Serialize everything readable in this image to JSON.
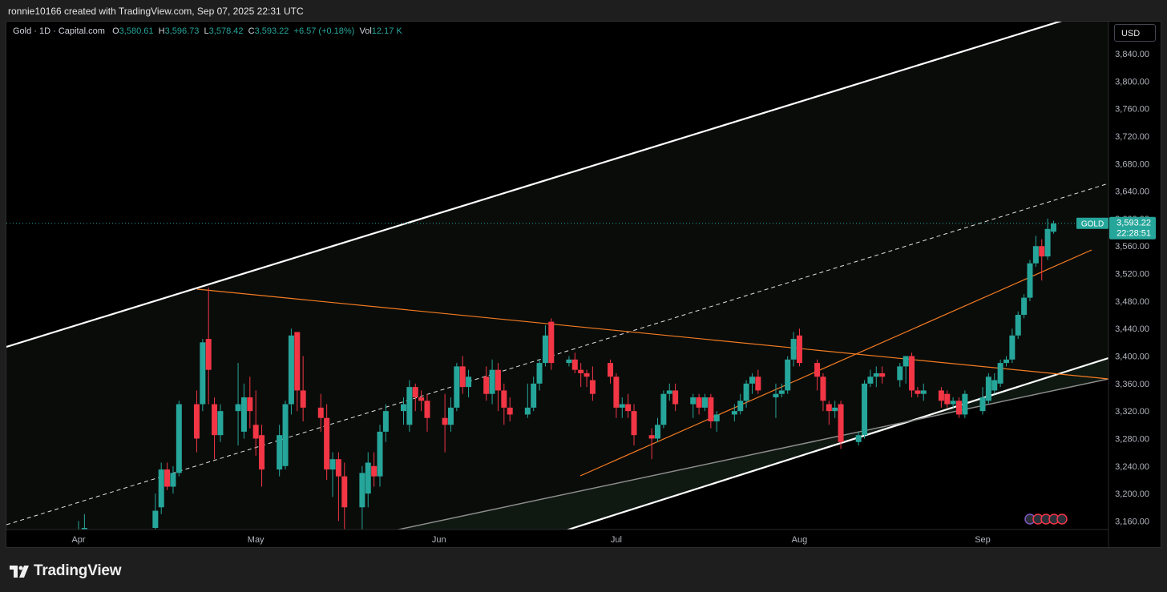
{
  "header": {
    "attribution": "ronnie10166 created with TradingView.com, Sep 07, 2025 22:31 UTC"
  },
  "legend": {
    "symbol": "Gold · 1D · Capital.com",
    "o_label": "O",
    "o_value": "3,580.61",
    "h_label": "H",
    "h_value": "3,596.73",
    "l_label": "L",
    "l_value": "3,578.42",
    "c_label": "C",
    "c_value": "3,593.22",
    "change": "+6.57 (+0.18%)",
    "vol_label": "Vol",
    "vol_value": "12.17 K"
  },
  "currency_button": {
    "label": "USD"
  },
  "price_tag": {
    "symbol": "GOLD",
    "price": "3,593.22",
    "countdown": "22:28:51"
  },
  "footer": {
    "logo_text": "TradingView"
  },
  "colors": {
    "up": "#26a69a",
    "down": "#f23645",
    "trendline": "#f57c22",
    "channel": "#ffffff",
    "background": "#000000"
  },
  "chart_data": {
    "type": "candlestick",
    "y_axis": {
      "min": 3150,
      "max": 3875,
      "ticks": [
        3160,
        3200,
        3240,
        3280,
        3320,
        3360,
        3400,
        3440,
        3480,
        3520,
        3560,
        3600,
        3640,
        3680,
        3720,
        3760,
        3800,
        3840
      ],
      "tick_labels": [
        "3,160.00",
        "3,200.00",
        "3,240.00",
        "3,280.00",
        "3,320.00",
        "3,360.00",
        "3,400.00",
        "3,440.00",
        "3,480.00",
        "3,520.00",
        "3,560.00",
        "3,600.00",
        "3,640.00",
        "3,680.00",
        "3,720.00",
        "3,760.00",
        "3,800.00",
        "3,840.00"
      ]
    },
    "x_axis": {
      "labels": [
        {
          "text": "Apr",
          "date": "2025-04-01"
        },
        {
          "text": "May",
          "date": "2025-05-01"
        },
        {
          "text": "Jun",
          "date": "2025-06-01"
        },
        {
          "text": "Jul",
          "date": "2025-07-01"
        },
        {
          "text": "Aug",
          "date": "2025-08-01"
        },
        {
          "text": "Sep",
          "date": "2025-09-01"
        }
      ]
    },
    "last_price": 3593.22,
    "candles": [
      {
        "d": "04-01",
        "o": 3130,
        "h": 3160,
        "l": 3120,
        "c": 3145
      },
      {
        "d": "04-02",
        "o": 3135,
        "h": 3170,
        "l": 3125,
        "c": 3150
      },
      {
        "d": "04-14",
        "o": 3150,
        "h": 3200,
        "l": 3140,
        "c": 3175
      },
      {
        "d": "04-15",
        "o": 3180,
        "h": 3245,
        "l": 3170,
        "c": 3235
      },
      {
        "d": "04-16",
        "o": 3235,
        "h": 3245,
        "l": 3205,
        "c": 3210
      },
      {
        "d": "04-17",
        "o": 3210,
        "h": 3240,
        "l": 3200,
        "c": 3230
      },
      {
        "d": "04-18",
        "o": 3230,
        "h": 3335,
        "l": 3225,
        "c": 3330
      },
      {
        "d": "04-21",
        "o": 3330,
        "h": 3350,
        "l": 3260,
        "c": 3280
      },
      {
        "d": "04-22",
        "o": 3330,
        "h": 3425,
        "l": 3320,
        "c": 3420
      },
      {
        "d": "04-23",
        "o": 3425,
        "h": 3500,
        "l": 3330,
        "c": 3380
      },
      {
        "d": "04-24",
        "o": 3330,
        "h": 3340,
        "l": 3250,
        "c": 3285
      },
      {
        "d": "04-25",
        "o": 3285,
        "h": 3330,
        "l": 3275,
        "c": 3320
      },
      {
        "d": "04-28",
        "o": 3320,
        "h": 3390,
        "l": 3270,
        "c": 3330
      },
      {
        "d": "04-29",
        "o": 3290,
        "h": 3360,
        "l": 3280,
        "c": 3340
      },
      {
        "d": "04-30",
        "o": 3340,
        "h": 3370,
        "l": 3295,
        "c": 3320
      },
      {
        "d": "05-01",
        "o": 3300,
        "h": 3350,
        "l": 3255,
        "c": 3280
      },
      {
        "d": "05-02",
        "o": 3285,
        "h": 3300,
        "l": 3210,
        "c": 3235
      },
      {
        "d": "05-05",
        "o": 3235,
        "h": 3300,
        "l": 3225,
        "c": 3285
      },
      {
        "d": "05-06",
        "o": 3240,
        "h": 3335,
        "l": 3235,
        "c": 3330
      },
      {
        "d": "05-07",
        "o": 3330,
        "h": 3440,
        "l": 3315,
        "c": 3430
      },
      {
        "d": "05-08",
        "o": 3435,
        "h": 3435,
        "l": 3320,
        "c": 3350
      },
      {
        "d": "05-09",
        "o": 3350,
        "h": 3400,
        "l": 3305,
        "c": 3325
      },
      {
        "d": "05-12",
        "o": 3325,
        "h": 3345,
        "l": 3290,
        "c": 3310
      },
      {
        "d": "05-13",
        "o": 3310,
        "h": 3330,
        "l": 3220,
        "c": 3235
      },
      {
        "d": "05-14",
        "o": 3235,
        "h": 3260,
        "l": 3195,
        "c": 3250
      },
      {
        "d": "05-15",
        "o": 3250,
        "h": 3260,
        "l": 3160,
        "c": 3225
      },
      {
        "d": "05-16",
        "o": 3225,
        "h": 3245,
        "l": 3145,
        "c": 3180
      },
      {
        "d": "05-19",
        "o": 3180,
        "h": 3240,
        "l": 3140,
        "c": 3230
      },
      {
        "d": "05-20",
        "o": 3200,
        "h": 3260,
        "l": 3180,
        "c": 3245
      },
      {
        "d": "05-21",
        "o": 3240,
        "h": 3260,
        "l": 3210,
        "c": 3225
      },
      {
        "d": "05-22",
        "o": 3225,
        "h": 3300,
        "l": 3210,
        "c": 3290
      },
      {
        "d": "05-23",
        "o": 3290,
        "h": 3330,
        "l": 3275,
        "c": 3320
      },
      {
        "d": "05-26",
        "o": 3320,
        "h": 3340,
        "l": 3300,
        "c": 3330
      },
      {
        "d": "05-27",
        "o": 3300,
        "h": 3365,
        "l": 3290,
        "c": 3355
      },
      {
        "d": "05-28",
        "o": 3355,
        "h": 3360,
        "l": 3320,
        "c": 3340
      },
      {
        "d": "05-29",
        "o": 3340,
        "h": 3350,
        "l": 3320,
        "c": 3335
      },
      {
        "d": "05-30",
        "o": 3335,
        "h": 3345,
        "l": 3290,
        "c": 3310
      },
      {
        "d": "06-02",
        "o": 3310,
        "h": 3345,
        "l": 3260,
        "c": 3300
      },
      {
        "d": "06-03",
        "o": 3300,
        "h": 3340,
        "l": 3290,
        "c": 3325
      },
      {
        "d": "06-04",
        "o": 3325,
        "h": 3390,
        "l": 3320,
        "c": 3385
      },
      {
        "d": "06-05",
        "o": 3385,
        "h": 3400,
        "l": 3345,
        "c": 3355
      },
      {
        "d": "06-06",
        "o": 3355,
        "h": 3380,
        "l": 3340,
        "c": 3370
      },
      {
        "d": "06-09",
        "o": 3370,
        "h": 3385,
        "l": 3335,
        "c": 3345
      },
      {
        "d": "06-10",
        "o": 3345,
        "h": 3395,
        "l": 3330,
        "c": 3380
      },
      {
        "d": "06-11",
        "o": 3380,
        "h": 3390,
        "l": 3320,
        "c": 3350
      },
      {
        "d": "06-12",
        "o": 3350,
        "h": 3360,
        "l": 3300,
        "c": 3325
      },
      {
        "d": "06-13",
        "o": 3325,
        "h": 3340,
        "l": 3305,
        "c": 3315
      },
      {
        "d": "06-16",
        "o": 3315,
        "h": 3360,
        "l": 3310,
        "c": 3325
      },
      {
        "d": "06-17",
        "o": 3325,
        "h": 3370,
        "l": 3320,
        "c": 3360
      },
      {
        "d": "06-18",
        "o": 3360,
        "h": 3395,
        "l": 3350,
        "c": 3390
      },
      {
        "d": "06-19",
        "o": 3390,
        "h": 3445,
        "l": 3385,
        "c": 3430
      },
      {
        "d": "06-20",
        "o": 3450,
        "h": 3455,
        "l": 3380,
        "c": 3390
      },
      {
        "d": "06-23",
        "o": 3390,
        "h": 3400,
        "l": 3385,
        "c": 3395
      },
      {
        "d": "06-24",
        "o": 3395,
        "h": 3405,
        "l": 3375,
        "c": 3380
      },
      {
        "d": "06-25",
        "o": 3380,
        "h": 3390,
        "l": 3355,
        "c": 3375
      },
      {
        "d": "06-26",
        "o": 3375,
        "h": 3380,
        "l": 3355,
        "c": 3370
      },
      {
        "d": "06-27",
        "o": 3365,
        "h": 3385,
        "l": 3335,
        "c": 3345
      },
      {
        "d": "06-30",
        "o": 3390,
        "h": 3395,
        "l": 3360,
        "c": 3370
      },
      {
        "d": "07-01",
        "o": 3370,
        "h": 3375,
        "l": 3310,
        "c": 3325
      },
      {
        "d": "07-02",
        "o": 3325,
        "h": 3340,
        "l": 3310,
        "c": 3330
      },
      {
        "d": "07-03",
        "o": 3330,
        "h": 3345,
        "l": 3310,
        "c": 3320
      },
      {
        "d": "07-04",
        "o": 3320,
        "h": 3330,
        "l": 3270,
        "c": 3285
      },
      {
        "d": "07-07",
        "o": 3285,
        "h": 3295,
        "l": 3250,
        "c": 3280
      },
      {
        "d": "07-08",
        "o": 3280,
        "h": 3310,
        "l": 3275,
        "c": 3300
      },
      {
        "d": "07-09",
        "o": 3300,
        "h": 3350,
        "l": 3295,
        "c": 3345
      },
      {
        "d": "07-10",
        "o": 3345,
        "h": 3360,
        "l": 3335,
        "c": 3350
      },
      {
        "d": "07-11",
        "o": 3350,
        "h": 3360,
        "l": 3320,
        "c": 3330
      },
      {
        "d": "07-14",
        "o": 3330,
        "h": 3345,
        "l": 3310,
        "c": 3340
      },
      {
        "d": "07-15",
        "o": 3340,
        "h": 3345,
        "l": 3315,
        "c": 3325
      },
      {
        "d": "07-16",
        "o": 3325,
        "h": 3345,
        "l": 3320,
        "c": 3340
      },
      {
        "d": "07-17",
        "o": 3340,
        "h": 3345,
        "l": 3295,
        "c": 3305
      },
      {
        "d": "07-18",
        "o": 3305,
        "h": 3320,
        "l": 3290,
        "c": 3315
      },
      {
        "d": "07-21",
        "o": 3315,
        "h": 3330,
        "l": 3305,
        "c": 3320
      },
      {
        "d": "07-22",
        "o": 3320,
        "h": 3345,
        "l": 3315,
        "c": 3335
      },
      {
        "d": "07-23",
        "o": 3335,
        "h": 3365,
        "l": 3325,
        "c": 3360
      },
      {
        "d": "07-24",
        "o": 3360,
        "h": 3375,
        "l": 3345,
        "c": 3370
      },
      {
        "d": "07-25",
        "o": 3370,
        "h": 3380,
        "l": 3345,
        "c": 3350
      },
      {
        "d": "07-28",
        "o": 3340,
        "h": 3360,
        "l": 3310,
        "c": 3345
      },
      {
        "d": "07-29",
        "o": 3345,
        "h": 3360,
        "l": 3340,
        "c": 3350
      },
      {
        "d": "07-30",
        "o": 3350,
        "h": 3400,
        "l": 3345,
        "c": 3395
      },
      {
        "d": "07-31",
        "o": 3395,
        "h": 3435,
        "l": 3385,
        "c": 3425
      },
      {
        "d": "08-01",
        "o": 3430,
        "h": 3440,
        "l": 3385,
        "c": 3390
      },
      {
        "d": "08-04",
        "o": 3390,
        "h": 3395,
        "l": 3350,
        "c": 3370
      },
      {
        "d": "08-05",
        "o": 3370,
        "h": 3375,
        "l": 3320,
        "c": 3335
      },
      {
        "d": "08-06",
        "o": 3330,
        "h": 3335,
        "l": 3300,
        "c": 3320
      },
      {
        "d": "08-07",
        "o": 3320,
        "h": 3335,
        "l": 3310,
        "c": 3325
      },
      {
        "d": "08-08",
        "o": 3330,
        "h": 3335,
        "l": 3265,
        "c": 3275
      },
      {
        "d": "08-11",
        "o": 3275,
        "h": 3290,
        "l": 3270,
        "c": 3285
      },
      {
        "d": "08-12",
        "o": 3285,
        "h": 3365,
        "l": 3280,
        "c": 3360
      },
      {
        "d": "08-13",
        "o": 3360,
        "h": 3380,
        "l": 3355,
        "c": 3370
      },
      {
        "d": "08-14",
        "o": 3370,
        "h": 3385,
        "l": 3355,
        "c": 3375
      },
      {
        "d": "08-15",
        "o": 3375,
        "h": 3385,
        "l": 3360,
        "c": 3370
      },
      {
        "d": "08-18",
        "o": 3365,
        "h": 3390,
        "l": 3355,
        "c": 3385
      },
      {
        "d": "08-19",
        "o": 3385,
        "h": 3400,
        "l": 3360,
        "c": 3400
      },
      {
        "d": "08-20",
        "o": 3400,
        "h": 3405,
        "l": 3340,
        "c": 3350
      },
      {
        "d": "08-21",
        "o": 3350,
        "h": 3355,
        "l": 3340,
        "c": 3345
      },
      {
        "d": "08-22",
        "o": 3345,
        "h": 3360,
        "l": 3335,
        "c": 3350
      },
      {
        "d": "08-25",
        "o": 3350,
        "h": 3355,
        "l": 3325,
        "c": 3335
      },
      {
        "d": "08-26",
        "o": 3345,
        "h": 3350,
        "l": 3325,
        "c": 3330
      },
      {
        "d": "08-27",
        "o": 3330,
        "h": 3340,
        "l": 3325,
        "c": 3335
      },
      {
        "d": "08-28",
        "o": 3335,
        "h": 3340,
        "l": 3310,
        "c": 3315
      },
      {
        "d": "08-29",
        "o": 3315,
        "h": 3350,
        "l": 3310,
        "c": 3345
      },
      {
        "d": "09-01",
        "o": 3320,
        "h": 3355,
        "l": 3315,
        "c": 3340
      },
      {
        "d": "09-02",
        "o": 3335,
        "h": 3375,
        "l": 3330,
        "c": 3370
      },
      {
        "d": "09-03",
        "o": 3350,
        "h": 3375,
        "l": 3345,
        "c": 3365
      },
      {
        "d": "09-04",
        "o": 3360,
        "h": 3395,
        "l": 3355,
        "c": 3390
      },
      {
        "d": "09-05",
        "o": 3390,
        "h": 3400,
        "l": 3385,
        "c": 3395
      },
      {
        "d": "09-06",
        "o": 3395,
        "h": 3440,
        "l": 3390,
        "c": 3430
      },
      {
        "d": "09-07",
        "o": 3430,
        "h": 3465,
        "l": 3425,
        "c": 3460
      },
      {
        "d": "09-08",
        "o": 3460,
        "h": 3490,
        "l": 3455,
        "c": 3485
      },
      {
        "d": "09-09",
        "o": 3485,
        "h": 3540,
        "l": 3480,
        "c": 3535
      },
      {
        "d": "09-10",
        "o": 3535,
        "h": 3575,
        "l": 3530,
        "c": 3560
      },
      {
        "d": "09-11",
        "o": 3560,
        "h": 3570,
        "l": 3510,
        "c": 3545
      },
      {
        "d": "09-12",
        "o": 3545,
        "h": 3600,
        "l": 3540,
        "c": 3585
      },
      {
        "d": "09-13",
        "o": 3581,
        "h": 3597,
        "l": 3578,
        "c": 3593
      }
    ]
  }
}
